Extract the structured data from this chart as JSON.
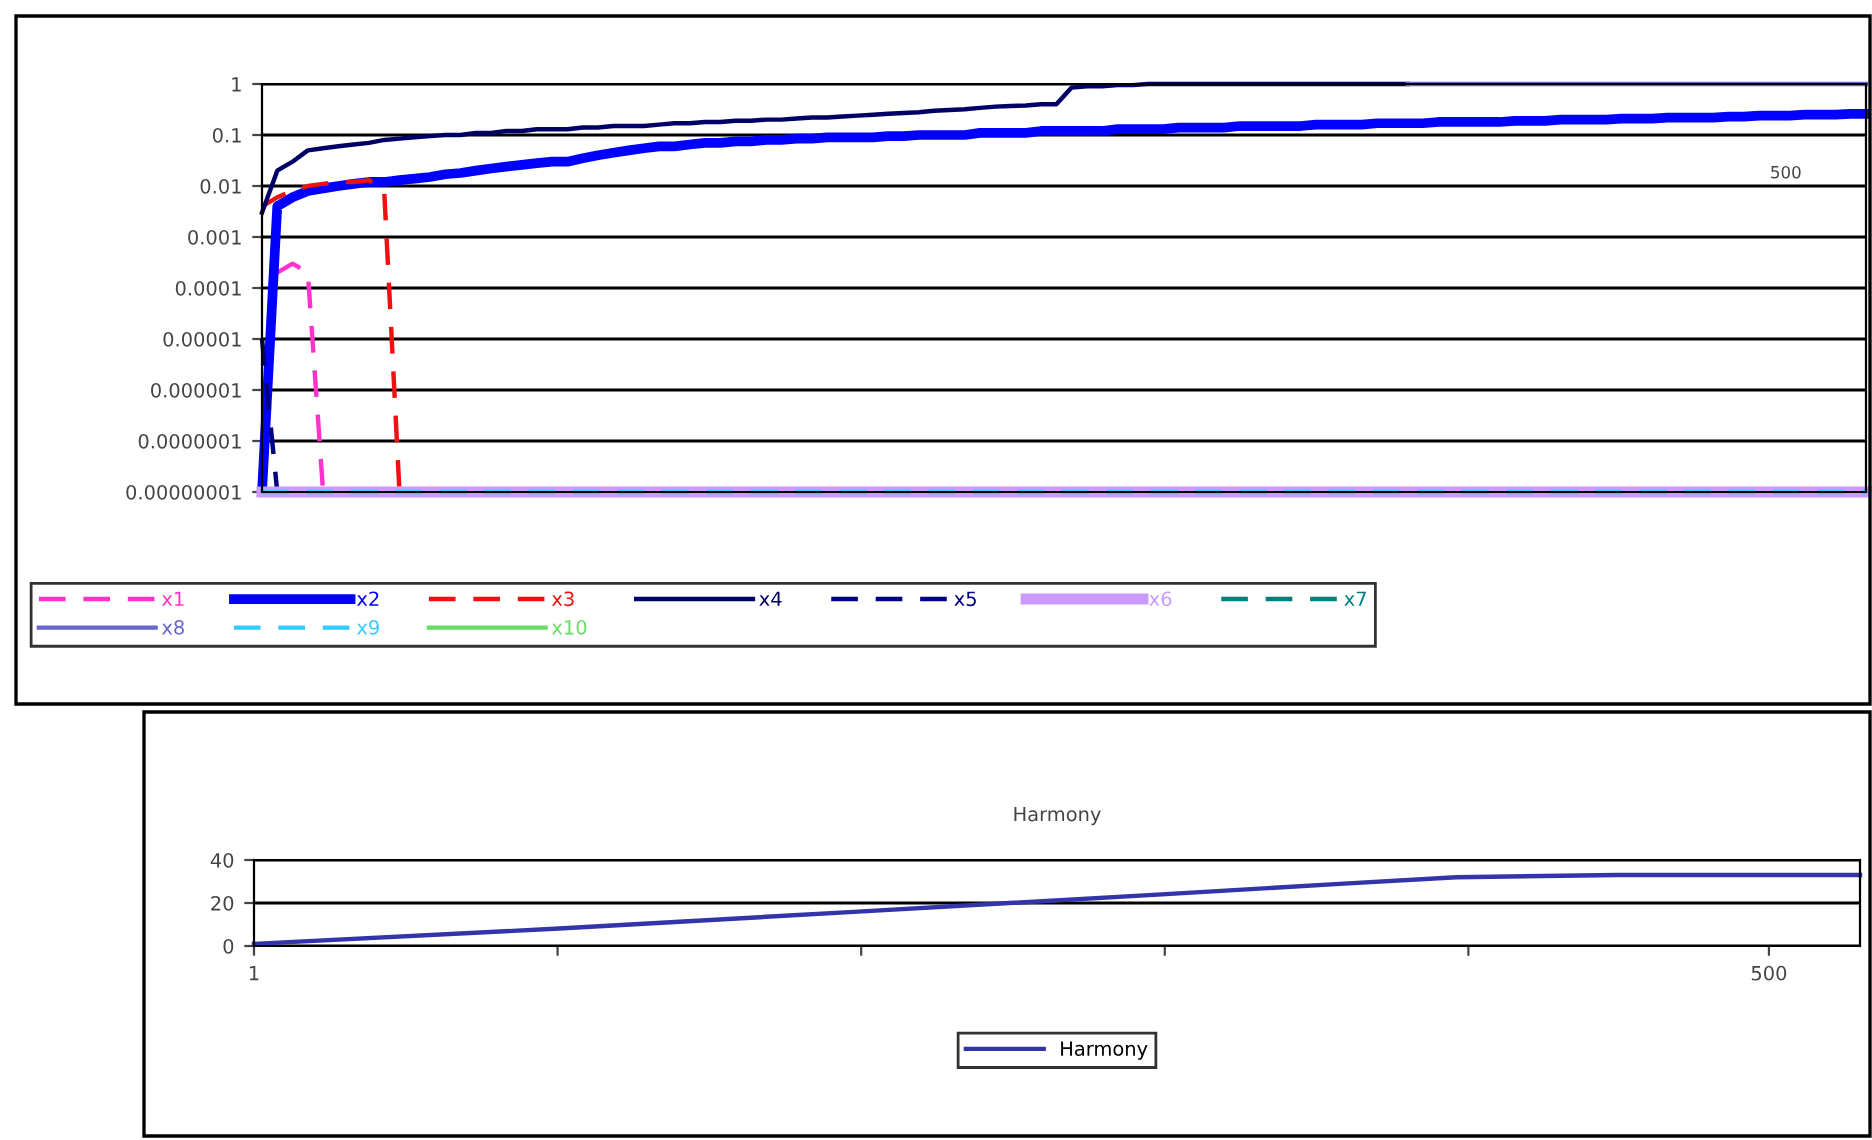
{
  "chart_data": [
    {
      "type": "line",
      "log": "y",
      "ylim": [
        1e-08,
        1
      ],
      "yticks": [
        {
          "value": 1e-08,
          "label": "0.00000001"
        },
        {
          "value": 1e-07,
          "label": "0.0000001"
        },
        {
          "value": 1e-06,
          "label": "0.000001"
        },
        {
          "value": 1e-05,
          "label": "0.00001"
        },
        {
          "value": 0.0001,
          "label": "0.0001"
        },
        {
          "value": 0.001,
          "label": "0.001"
        },
        {
          "value": 0.01,
          "label": "0.01"
        },
        {
          "value": 0.1,
          "label": "0.1"
        },
        {
          "value": 1,
          "label": "1"
        }
      ],
      "categories": [
        null,
        null,
        null,
        null,
        null,
        null,
        null,
        null,
        null,
        null,
        null,
        null,
        null,
        null,
        null,
        null,
        null,
        null,
        null,
        null,
        null,
        null,
        null,
        null,
        null,
        null,
        null,
        null,
        null,
        null,
        null,
        null,
        null,
        null,
        null,
        null,
        null,
        null,
        null,
        null,
        null,
        null,
        null,
        null,
        null,
        null,
        null,
        null,
        null,
        null,
        null,
        null,
        null,
        null,
        null,
        null,
        null,
        null,
        null,
        null,
        null,
        null,
        null,
        null,
        null,
        null,
        null,
        null,
        null,
        null,
        null,
        null,
        null,
        null,
        null,
        null,
        null,
        null,
        null,
        null,
        null,
        null,
        null,
        null,
        null,
        null,
        null,
        null,
        null,
        null,
        null,
        null,
        null,
        null,
        null,
        null,
        null,
        null,
        null,
        null,
        null,
        null,
        null,
        null,
        null,
        null
      ],
      "annotations": [
        "500"
      ],
      "grid": "y",
      "legend": "bottom",
      "series": [
        {
          "name": "x1",
          "color": "#ff33cc",
          "line_style": "dashed",
          "values": [
            null,
            0.0002,
            0.0003,
            0.0002,
            1e-08,
            null,
            null,
            null,
            null,
            null,
            null,
            null,
            null,
            null,
            null,
            null,
            null,
            null,
            null,
            null,
            null,
            null,
            null,
            null,
            null,
            null,
            null,
            null,
            null,
            null,
            null,
            null,
            null,
            null,
            null,
            null,
            null,
            null,
            null,
            null,
            null,
            null,
            null,
            null,
            null,
            null,
            null,
            null,
            null,
            null,
            null,
            null,
            null,
            null,
            null,
            null,
            null,
            null,
            null,
            null,
            null,
            null,
            null,
            null,
            null,
            null,
            null,
            null,
            null,
            null,
            null,
            null,
            null,
            null,
            null,
            null,
            null,
            null,
            null,
            null,
            null,
            null,
            null,
            null,
            null,
            null,
            null,
            null,
            null,
            null,
            null,
            null,
            null,
            null,
            null,
            null,
            null,
            null,
            null,
            null,
            null,
            null,
            null,
            null,
            null,
            null
          ]
        },
        {
          "name": "x2",
          "color": "#0000ff",
          "line_style": "solid",
          "values": [
            1e-08,
            0.004,
            0.006,
            0.008,
            0.009,
            0.01,
            0.011,
            0.012,
            0.012,
            0.013,
            0.014,
            0.015,
            0.017,
            0.018,
            0.02,
            0.022,
            0.024,
            0.026,
            0.028,
            0.03,
            0.03,
            0.035,
            0.04,
            0.045,
            0.05,
            0.055,
            0.06,
            0.06,
            0.065,
            0.07,
            0.07,
            0.075,
            0.075,
            0.08,
            0.08,
            0.085,
            0.085,
            0.09,
            0.09,
            0.09,
            0.09,
            0.095,
            0.095,
            0.1,
            0.1,
            0.1,
            0.1,
            0.11,
            0.11,
            0.11,
            0.11,
            0.12,
            0.12,
            0.12,
            0.12,
            0.12,
            0.13,
            0.13,
            0.13,
            0.13,
            0.14,
            0.14,
            0.14,
            0.14,
            0.15,
            0.15,
            0.15,
            0.15,
            0.15,
            0.16,
            0.16,
            0.16,
            0.16,
            0.17,
            0.17,
            0.17,
            0.17,
            0.18,
            0.18,
            0.18,
            0.18,
            0.18,
            0.19,
            0.19,
            0.19,
            0.2,
            0.2,
            0.2,
            0.2,
            0.21,
            0.21,
            0.21,
            0.22,
            0.22,
            0.22,
            0.22,
            0.23,
            0.23,
            0.24,
            0.24,
            0.24,
            0.25,
            0.25,
            0.25,
            0.26,
            0.26
          ]
        },
        {
          "name": "x3",
          "color": "#ee1111",
          "line_style": "dashed",
          "values": [
            0.004,
            0.006,
            0.008,
            0.01,
            0.011,
            0.012,
            0.012,
            0.013,
            0.008,
            1e-08,
            null,
            null,
            null,
            null,
            null,
            null,
            null,
            null,
            null,
            null,
            null,
            null,
            null,
            null,
            null,
            null,
            null,
            null,
            null,
            null,
            null,
            null,
            null,
            null,
            null,
            null,
            null,
            null,
            null,
            null,
            null,
            null,
            null,
            null,
            null,
            null,
            null,
            null,
            null,
            null,
            null,
            null,
            null,
            null,
            null,
            null,
            null,
            null,
            null,
            null,
            null,
            null,
            null,
            null,
            null,
            null,
            null,
            null,
            null,
            null,
            null,
            null,
            null,
            null,
            null,
            null,
            null,
            null,
            null,
            null,
            null,
            null,
            null,
            null,
            null,
            null,
            null,
            null,
            null,
            null,
            null,
            null,
            null,
            null,
            null,
            null,
            null,
            null,
            null,
            null,
            null,
            null,
            null,
            null,
            null,
            null
          ]
        },
        {
          "name": "x4",
          "color": "#000066",
          "line_style": "solid",
          "values": [
            0.003,
            0.02,
            0.03,
            0.05,
            0.055,
            0.06,
            0.065,
            0.07,
            0.08,
            0.085,
            0.09,
            0.095,
            0.1,
            0.1,
            0.11,
            0.11,
            0.12,
            0.12,
            0.13,
            0.13,
            0.13,
            0.14,
            0.14,
            0.15,
            0.15,
            0.15,
            0.16,
            0.17,
            0.17,
            0.18,
            0.18,
            0.19,
            0.19,
            0.2,
            0.2,
            0.21,
            0.22,
            0.22,
            0.23,
            0.24,
            0.25,
            0.26,
            0.27,
            0.28,
            0.3,
            0.31,
            0.32,
            0.34,
            0.36,
            0.37,
            0.38,
            0.4,
            0.4,
            0.85,
            0.9,
            0.9,
            0.95,
            0.95,
            1,
            1,
            1,
            1,
            1,
            1,
            1,
            1,
            1,
            1,
            1,
            1,
            1,
            1,
            1,
            1,
            1,
            1,
            null,
            null,
            null,
            null,
            null,
            null,
            null,
            null,
            null,
            null,
            null,
            null,
            null,
            null,
            null,
            null,
            null,
            null,
            null,
            null,
            null,
            null,
            null,
            null,
            null,
            null,
            null,
            null,
            null,
            null
          ]
        },
        {
          "name": "x5",
          "color": "#000080",
          "line_style": "dashed",
          "values": [
            1e-05,
            1e-08,
            null,
            null,
            null,
            null,
            null,
            null,
            null,
            null,
            null,
            null,
            null,
            null,
            null,
            null,
            null,
            null,
            null,
            null,
            null,
            null,
            null,
            null,
            null,
            null,
            null,
            null,
            null,
            null,
            null,
            null,
            null,
            null,
            null,
            null,
            null,
            null,
            null,
            null,
            null,
            null,
            null,
            null,
            null,
            null,
            null,
            null,
            null,
            null,
            null,
            null,
            null,
            null,
            null,
            null,
            null,
            null,
            null,
            null,
            null,
            null,
            null,
            null,
            null,
            null,
            null,
            null,
            null,
            null,
            null,
            null,
            null,
            null,
            null,
            null,
            null,
            null,
            null,
            null,
            null,
            null,
            null,
            null,
            null,
            null,
            null,
            null,
            null,
            null,
            null,
            null,
            null,
            null,
            null,
            null,
            null,
            null,
            null,
            null,
            null,
            null,
            null,
            null,
            null,
            null
          ]
        },
        {
          "name": "x6",
          "color": "#cc99ff",
          "line_style": "solid",
          "values": [
            1e-08,
            1e-08,
            1e-08,
            1e-08,
            1e-08,
            1e-08,
            1e-08,
            1e-08,
            1e-08,
            1e-08,
            1e-08,
            1e-08,
            1e-08,
            1e-08,
            1e-08,
            1e-08,
            1e-08,
            1e-08,
            1e-08,
            1e-08,
            1e-08,
            1e-08,
            1e-08,
            1e-08,
            1e-08,
            1e-08,
            1e-08,
            1e-08,
            1e-08,
            1e-08,
            1e-08,
            1e-08,
            1e-08,
            1e-08,
            1e-08,
            1e-08,
            1e-08,
            1e-08,
            1e-08,
            1e-08,
            1e-08,
            1e-08,
            1e-08,
            1e-08,
            1e-08,
            1e-08,
            1e-08,
            1e-08,
            1e-08,
            1e-08,
            1e-08,
            1e-08,
            1e-08,
            1e-08,
            1e-08,
            1e-08,
            1e-08,
            1e-08,
            1e-08,
            1e-08,
            1e-08,
            1e-08,
            1e-08,
            1e-08,
            1e-08,
            1e-08,
            1e-08,
            1e-08,
            1e-08,
            1e-08,
            1e-08,
            1e-08,
            1e-08,
            1e-08,
            1e-08,
            1e-08,
            1e-08,
            1e-08,
            1e-08,
            1e-08,
            1e-08,
            1e-08,
            1e-08,
            1e-08,
            1e-08,
            1e-08,
            1e-08,
            1e-08,
            1e-08,
            1e-08,
            1e-08,
            1e-08,
            1e-08,
            1e-08,
            1e-08,
            1e-08,
            1e-08,
            1e-08,
            1e-08,
            1e-08,
            1e-08,
            1e-08,
            1e-08,
            1e-08,
            1e-08,
            1e-08
          ]
        },
        {
          "name": "x7",
          "color": "#008080",
          "line_style": "dashed",
          "values": [
            null,
            null,
            null,
            null,
            null,
            null,
            null,
            null,
            null,
            null,
            null,
            null,
            null,
            null,
            null,
            null,
            null,
            null,
            null,
            null,
            null,
            null,
            null,
            null,
            null,
            null,
            null,
            null,
            null,
            null,
            null,
            null,
            null,
            null,
            null,
            null,
            null,
            null,
            null,
            null,
            null,
            null,
            null,
            null,
            null,
            null,
            null,
            null,
            null,
            null,
            null,
            null,
            null,
            null,
            null,
            null,
            null,
            null,
            null,
            null,
            null,
            null,
            null,
            null,
            null,
            null,
            null,
            null,
            null,
            null,
            null,
            null,
            null,
            null,
            null,
            null,
            null,
            null,
            null,
            null,
            null,
            null,
            null,
            null,
            null,
            null,
            null,
            null,
            null,
            null,
            null,
            null,
            null,
            null,
            null,
            null,
            null,
            null,
            null,
            null,
            null,
            null,
            null,
            null,
            null,
            null
          ]
        },
        {
          "name": "x8",
          "color": "#6666cc",
          "line_style": "solid",
          "values": [
            null,
            null,
            null,
            null,
            null,
            null,
            null,
            null,
            null,
            null,
            null,
            null,
            null,
            null,
            null,
            null,
            null,
            null,
            null,
            null,
            null,
            null,
            null,
            null,
            null,
            null,
            null,
            null,
            null,
            null,
            null,
            null,
            null,
            null,
            null,
            null,
            null,
            null,
            null,
            null,
            null,
            null,
            null,
            null,
            null,
            null,
            null,
            null,
            null,
            null,
            null,
            null,
            null,
            null,
            null,
            null,
            null,
            null,
            null,
            null,
            null,
            null,
            null,
            null,
            null,
            null,
            null,
            null,
            null,
            null,
            null,
            null,
            null,
            null,
            null,
            1,
            1,
            1,
            1,
            1,
            1,
            1,
            1,
            1,
            1,
            1,
            1,
            1,
            1,
            1,
            1,
            1,
            1,
            1,
            1,
            1,
            1,
            1,
            1,
            1,
            1,
            1,
            1,
            1,
            1,
            1
          ]
        },
        {
          "name": "x9",
          "color": "#33ccff",
          "line_style": "dashed",
          "values": [
            1e-08,
            1e-08,
            1e-08,
            1e-08,
            1e-08,
            1e-08,
            1e-08,
            1e-08,
            1e-08,
            1e-08,
            1e-08,
            1e-08,
            1e-08,
            1e-08,
            1e-08,
            1e-08,
            1e-08,
            1e-08,
            1e-08,
            1e-08,
            1e-08,
            1e-08,
            1e-08,
            1e-08,
            1e-08,
            1e-08,
            1e-08,
            1e-08,
            1e-08,
            1e-08,
            1e-08,
            1e-08,
            1e-08,
            1e-08,
            1e-08,
            1e-08,
            1e-08,
            1e-08,
            1e-08,
            1e-08,
            1e-08,
            1e-08,
            1e-08,
            1e-08,
            1e-08,
            1e-08,
            1e-08,
            1e-08,
            1e-08,
            1e-08,
            1e-08,
            1e-08,
            1e-08,
            1e-08,
            1e-08,
            1e-08,
            1e-08,
            1e-08,
            1e-08,
            1e-08,
            1e-08,
            1e-08,
            1e-08,
            1e-08,
            1e-08,
            1e-08,
            1e-08,
            1e-08,
            1e-08,
            1e-08,
            1e-08,
            1e-08,
            1e-08,
            1e-08,
            1e-08,
            1e-08,
            1e-08,
            1e-08,
            1e-08,
            1e-08,
            1e-08,
            1e-08,
            1e-08,
            1e-08,
            1e-08,
            1e-08,
            1e-08,
            1e-08,
            1e-08,
            1e-08,
            1e-08,
            1e-08,
            1e-08,
            1e-08,
            1e-08,
            1e-08,
            1e-08,
            1e-08,
            1e-08,
            1e-08,
            1e-08,
            1e-08,
            1e-08,
            1e-08,
            1e-08,
            1e-08
          ]
        },
        {
          "name": "x10",
          "color": "#66dd66",
          "line_style": "solid",
          "values": [
            null,
            null,
            null,
            null,
            null,
            null,
            null,
            null,
            null,
            null,
            null,
            null,
            null,
            null,
            null,
            null,
            null,
            null,
            null,
            null,
            null,
            null,
            null,
            null,
            null,
            null,
            null,
            null,
            null,
            null,
            null,
            null,
            null,
            null,
            null,
            null,
            null,
            null,
            null,
            null,
            null,
            null,
            null,
            null,
            null,
            null,
            null,
            null,
            null,
            null,
            null,
            null,
            null,
            null,
            null,
            null,
            null,
            null,
            null,
            null,
            null,
            null,
            null,
            null,
            null,
            null,
            null,
            null,
            null,
            null,
            null,
            null,
            null,
            null,
            null,
            null,
            null,
            null,
            null,
            null,
            null,
            null,
            null,
            null,
            null,
            null,
            null,
            null,
            null,
            null,
            null,
            null,
            null,
            null,
            null,
            null,
            null,
            null,
            null,
            null,
            null,
            null,
            null,
            null,
            null,
            null
          ]
        }
      ]
    },
    {
      "type": "line",
      "title": "Harmony",
      "ylim": [
        0,
        40
      ],
      "yticks": [
        0,
        20,
        40
      ],
      "xlim": [
        1,
        530
      ],
      "xticks": [
        1,
        {
          "value": 101,
          "label": null
        },
        {
          "value": 201,
          "label": null
        },
        {
          "value": 301,
          "label": null
        },
        {
          "value": 401,
          "label": null
        },
        500
      ],
      "grid": "y",
      "legend": "bottom",
      "series": [
        {
          "name": "Harmony",
          "color": "#3333aa",
          "line_style": "solid",
          "x": [
            1,
            100,
            200,
            300,
            360,
            397,
            450,
            530
          ],
          "values": [
            1,
            8,
            16,
            24,
            29,
            32,
            33,
            33
          ]
        }
      ]
    }
  ]
}
